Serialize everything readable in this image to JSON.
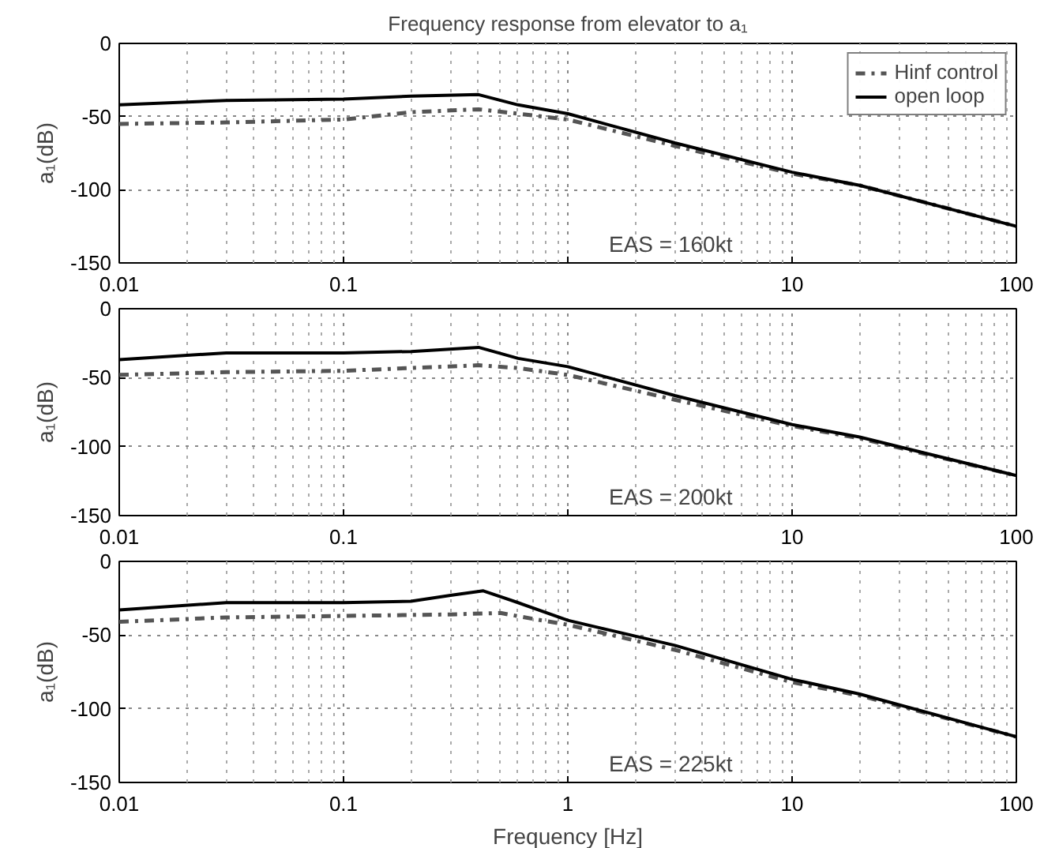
{
  "chart_data": [
    {
      "type": "line",
      "title": "Frequency response from elevator to a₁",
      "ylabel": "a₁(dB)",
      "log": "x",
      "grid": true,
      "legend": "top right",
      "xlim": [
        0.01,
        100
      ],
      "xticks": [
        0.01,
        0.1,
        {
          "value": 1,
          "label": null
        },
        10,
        100
      ],
      "ylim": [
        -150,
        0
      ],
      "yticks": [
        -150,
        -100,
        -50,
        0
      ],
      "annotations": [
        "EAS = 160kt"
      ],
      "series": [
        {
          "name": "Hinf control",
          "color": "#555555",
          "line_style": "dashdot",
          "x": [
            0.01,
            0.03,
            0.1,
            0.2,
            0.4,
            0.6,
            1,
            3,
            10,
            20,
            100
          ],
          "values": [
            -55,
            -54,
            -52,
            -47,
            -45,
            -48,
            -52,
            -70,
            -89,
            -97,
            -125
          ]
        },
        {
          "name": "open loop",
          "color": "#000000",
          "line_style": "solid",
          "x": [
            0.01,
            0.03,
            0.1,
            0.2,
            0.4,
            0.6,
            1,
            3,
            10,
            20,
            100
          ],
          "values": [
            -42,
            -39,
            -38,
            -36,
            -35,
            -42,
            -48,
            -68,
            -88,
            -97,
            -125
          ]
        }
      ]
    },
    {
      "type": "line",
      "ylabel": "a₁(dB)",
      "log": "x",
      "grid": true,
      "xlim": [
        0.01,
        100
      ],
      "xticks": [
        0.01,
        0.1,
        {
          "value": 1,
          "label": null
        },
        10,
        100
      ],
      "ylim": [
        -150,
        0
      ],
      "yticks": [
        -150,
        -100,
        -50,
        0
      ],
      "annotations": [
        "EAS = 200kt"
      ],
      "series": [
        {
          "color": "#555555",
          "line_style": "dashdot",
          "x": [
            0.01,
            0.03,
            0.1,
            0.2,
            0.4,
            0.6,
            1,
            3,
            10,
            20,
            100
          ],
          "values": [
            -48,
            -46,
            -45,
            -43,
            -41,
            -43,
            -48,
            -66,
            -85,
            -94,
            -121
          ]
        },
        {
          "color": "#000000",
          "line_style": "solid",
          "x": [
            0.01,
            0.03,
            0.1,
            0.2,
            0.4,
            0.6,
            1,
            3,
            10,
            20,
            100
          ],
          "values": [
            -37,
            -32,
            -32,
            -31,
            -28,
            -36,
            -42,
            -63,
            -84,
            -93,
            -121
          ]
        }
      ]
    },
    {
      "type": "line",
      "ylabel": "a₁(dB)",
      "xlabel": "Frequency [Hz]",
      "log": "x",
      "grid": true,
      "xlim": [
        0.01,
        100
      ],
      "xticks": [
        0.01,
        0.1,
        1,
        10,
        100
      ],
      "ylim": [
        -150,
        0
      ],
      "yticks": [
        -150,
        -100,
        -50,
        0
      ],
      "annotations": [
        "EAS = 225kt"
      ],
      "series": [
        {
          "color": "#555555",
          "line_style": "dashdot",
          "x": [
            0.01,
            0.03,
            0.1,
            0.3,
            0.5,
            0.7,
            1,
            3,
            10,
            20,
            100
          ],
          "values": [
            -41,
            -38,
            -37,
            -36,
            -35,
            -39,
            -43,
            -60,
            -82,
            -91,
            -119
          ]
        },
        {
          "color": "#000000",
          "line_style": "solid",
          "x": [
            0.01,
            0.03,
            0.1,
            0.2,
            0.3,
            0.42,
            0.6,
            1,
            3,
            10,
            20,
            100
          ],
          "values": [
            -33,
            -28,
            -28,
            -27,
            -23,
            -20,
            -28,
            -40,
            -57,
            -80,
            -90,
            -119
          ]
        }
      ]
    }
  ]
}
